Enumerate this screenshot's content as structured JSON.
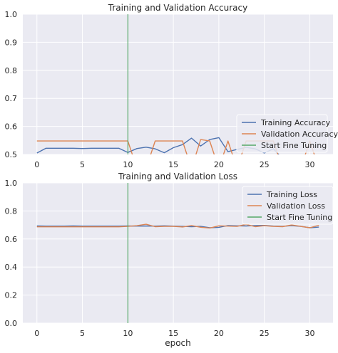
{
  "chart_data": [
    {
      "type": "line",
      "title": "Training and Validation Accuracy",
      "xlabel": "",
      "ylabel": "",
      "xlim": [
        -1.55,
        32.55
      ],
      "ylim": [
        0.5,
        1.0
      ],
      "xticks": [
        0,
        5,
        10,
        15,
        20,
        25,
        30
      ],
      "yticks": [
        0.5,
        0.6,
        0.7,
        0.8,
        0.9,
        1.0
      ],
      "ytick_labels": [
        "0.5",
        "0.6",
        "0.7",
        "0.8",
        "0.9",
        "1.0"
      ],
      "grid": true,
      "legend_position": "lower-right",
      "x": [
        0,
        1,
        2,
        3,
        4,
        5,
        6,
        7,
        8,
        9,
        10,
        11,
        12,
        13,
        14,
        15,
        16,
        17,
        18,
        19,
        20,
        21,
        22,
        23,
        24,
        25,
        26,
        27,
        28,
        29,
        30,
        31
      ],
      "series": [
        {
          "name": "Training Accuracy",
          "color": "#4c72b0",
          "values": [
            0.505,
            0.522,
            0.522,
            0.522,
            0.522,
            0.521,
            0.522,
            0.522,
            0.522,
            0.522,
            0.507,
            0.521,
            0.526,
            0.52,
            0.506,
            0.524,
            0.535,
            0.558,
            0.53,
            0.553,
            0.56,
            0.51,
            0.518,
            0.525,
            0.52,
            0.505,
            0.52,
            0.485,
            0.48,
            0.49,
            0.48,
            0.47
          ]
        },
        {
          "name": "Validation Accuracy",
          "color": "#dd8452",
          "values": [
            0.548,
            0.548,
            0.548,
            0.548,
            0.548,
            0.548,
            0.548,
            0.548,
            0.548,
            0.548,
            0.548,
            0.45,
            0.45,
            0.548,
            0.548,
            0.548,
            0.548,
            0.45,
            0.553,
            0.548,
            0.45,
            0.548,
            0.45,
            0.548,
            0.548,
            0.548,
            0.548,
            0.45,
            0.45,
            0.45,
            0.548,
            0.45
          ]
        }
      ],
      "vlines": [
        {
          "name": "Start Fine Tuning",
          "x": 10,
          "color": "#55a868"
        }
      ]
    },
    {
      "type": "line",
      "title": "Training and Validation Loss",
      "xlabel": "epoch",
      "ylabel": "",
      "xlim": [
        -1.55,
        32.55
      ],
      "ylim": [
        0.0,
        1.0
      ],
      "xticks": [
        0,
        5,
        10,
        15,
        20,
        25,
        30
      ],
      "yticks": [
        0.0,
        0.2,
        0.4,
        0.6,
        0.8,
        1.0
      ],
      "ytick_labels": [
        "0.0",
        "0.2",
        "0.4",
        "0.6",
        "0.8",
        "1.0"
      ],
      "grid": true,
      "legend_position": "upper-right",
      "x": [
        0,
        1,
        2,
        3,
        4,
        5,
        6,
        7,
        8,
        9,
        10,
        11,
        12,
        13,
        14,
        15,
        16,
        17,
        18,
        19,
        20,
        21,
        22,
        23,
        24,
        25,
        26,
        27,
        28,
        29,
        30,
        31
      ],
      "series": [
        {
          "name": "Training Loss",
          "color": "#4c72b0",
          "values": [
            0.693,
            0.692,
            0.692,
            0.692,
            0.693,
            0.692,
            0.692,
            0.692,
            0.692,
            0.692,
            0.693,
            0.692,
            0.693,
            0.692,
            0.694,
            0.692,
            0.69,
            0.688,
            0.69,
            0.68,
            0.683,
            0.696,
            0.694,
            0.693,
            0.696,
            0.697,
            0.692,
            0.69,
            0.695,
            0.69,
            0.68,
            0.685
          ]
        },
        {
          "name": "Validation Loss",
          "color": "#dd8452",
          "values": [
            0.687,
            0.687,
            0.687,
            0.687,
            0.687,
            0.687,
            0.687,
            0.687,
            0.687,
            0.687,
            0.69,
            0.695,
            0.705,
            0.688,
            0.69,
            0.69,
            0.686,
            0.696,
            0.684,
            0.678,
            0.694,
            0.692,
            0.69,
            0.704,
            0.688,
            0.695,
            0.69,
            0.688,
            0.7,
            0.69,
            0.68,
            0.698
          ]
        }
      ],
      "vlines": [
        {
          "name": "Start Fine Tuning",
          "x": 10,
          "color": "#55a868"
        }
      ]
    }
  ]
}
